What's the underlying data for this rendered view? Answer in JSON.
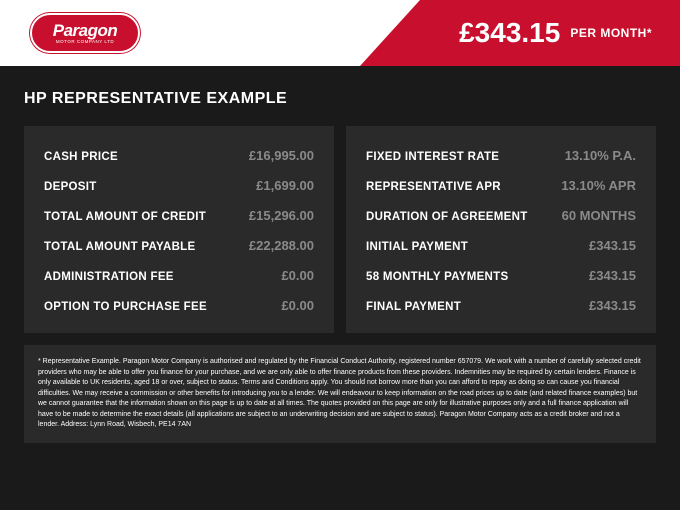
{
  "brand": {
    "logo_main": "Paragon",
    "logo_sub": "MOTOR COMPANY LTD",
    "logo_bg": "#c8102e",
    "logo_text_color": "#ffffff"
  },
  "header": {
    "price": "£343.15",
    "per": "PER MONTH*",
    "slash_color": "#c8102e",
    "header_bg": "#ffffff"
  },
  "title": "HP REPRESENTATIVE EXAMPLE",
  "columns": {
    "left": [
      {
        "label": "CASH PRICE",
        "value": "£16,995.00"
      },
      {
        "label": "DEPOSIT",
        "value": "£1,699.00"
      },
      {
        "label": "TOTAL AMOUNT OF CREDIT",
        "value": "£15,296.00"
      },
      {
        "label": "TOTAL AMOUNT PAYABLE",
        "value": "£22,288.00"
      },
      {
        "label": "ADMINISTRATION FEE",
        "value": "£0.00"
      },
      {
        "label": "OPTION TO PURCHASE FEE",
        "value": "£0.00"
      }
    ],
    "right": [
      {
        "label": "FIXED INTEREST RATE",
        "value": "13.10% P.A."
      },
      {
        "label": "REPRESENTATIVE APR",
        "value": "13.10% APR"
      },
      {
        "label": "DURATION OF AGREEMENT",
        "value": "60 MONTHS"
      },
      {
        "label": "INITIAL PAYMENT",
        "value": "£343.15"
      },
      {
        "label": "58 MONTHLY PAYMENTS",
        "value": "£343.15"
      },
      {
        "label": "FINAL PAYMENT",
        "value": "£343.15"
      }
    ]
  },
  "colors": {
    "page_bg": "#1a1a1a",
    "panel_bg": "#2a2a2a",
    "label_color": "#ffffff",
    "value_color": "#8a8a8a",
    "accent": "#c8102e"
  },
  "typography": {
    "title_fontsize": 16,
    "row_label_fontsize": 11.5,
    "row_value_fontsize": 13,
    "price_fontsize": 28,
    "footer_fontsize": 7
  },
  "footer": "* Representative Example. Paragon Motor Company is authorised and regulated by the Financial Conduct Authority, registered number 657079. We work with a number of carefully selected credit providers who may be able to offer you finance for your purchase, and we are only able to offer finance products from these providers. Indemnities may be required by certain lenders. Finance is only available to UK residents, aged 18 or over, subject to status. Terms and Conditions apply. You should not borrow more than you can afford to repay as doing so can cause you financial difficulties. We may receive a commission or other benefits for introducing you to a lender. We will endeavour to keep information on the road prices up to date (and related finance examples) but we cannot guarantee that the information shown on this page is up to date at all times. The quotes provided on this page are only for illustrative purposes only and a full finance application will have to be made to determine the exact details (all applications are subject to an underwriting decision and are subject to status). Paragon Motor Company acts as a credit broker and not a lender. Address: Lynn Road, Wisbech, PE14 7AN"
}
